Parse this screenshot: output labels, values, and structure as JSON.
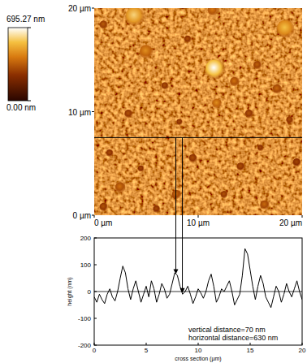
{
  "chart_data": [
    {
      "type": "image",
      "xlim": [
        0,
        20
      ],
      "ylim": [
        0,
        20
      ],
      "xticks": [
        {
          "value": 0,
          "label": "0 µm"
        },
        {
          "value": 10,
          "label": "10 µm"
        },
        {
          "value": 20,
          "label": "20 µm"
        }
      ],
      "yticks": [
        {
          "value": 0,
          "label": "0 µm"
        },
        {
          "value": 10,
          "label": "10 µm"
        },
        {
          "value": 20,
          "label": "20 µm"
        }
      ],
      "colorbar_range": [
        0,
        695.27
      ],
      "colorbar_ticks": [
        {
          "value": 0,
          "label": "0.00 nm"
        },
        {
          "value": 695.27,
          "label": "695.27 nm"
        }
      ],
      "cross_section_y": 7.5,
      "grains": [
        {
          "x": 3.9,
          "y": 19.2,
          "d": 1.8,
          "height": 600
        },
        {
          "x": 11.6,
          "y": 14.1,
          "d": 1.9,
          "height": 695
        },
        {
          "x": 18.4,
          "y": 18.0,
          "d": 1.7,
          "height": 560
        },
        {
          "x": 5.0,
          "y": 15.8,
          "d": 1.3,
          "height": 460
        },
        {
          "x": 11.4,
          "y": 19.8,
          "d": 1.0,
          "height": 420
        },
        {
          "x": 11.8,
          "y": 10.8,
          "d": 0.9,
          "height": 460
        },
        {
          "x": 13.5,
          "y": 12.9,
          "d": 0.9,
          "height": 400
        },
        {
          "x": 17.6,
          "y": 12.2,
          "d": 0.9,
          "height": 380
        },
        {
          "x": 15.7,
          "y": 14.5,
          "d": 0.8,
          "height": 360
        },
        {
          "x": 0.9,
          "y": 18.4,
          "d": 0.8,
          "height": 350
        },
        {
          "x": 2.5,
          "y": 2.7,
          "d": 1.0,
          "height": 400
        },
        {
          "x": 7.9,
          "y": 2.0,
          "d": 0.9,
          "height": 380
        },
        {
          "x": 16.4,
          "y": 1.0,
          "d": 0.9,
          "height": 380
        },
        {
          "x": 3.3,
          "y": 9.8,
          "d": 0.8,
          "height": 330
        },
        {
          "x": 14.9,
          "y": 9.8,
          "d": 0.8,
          "height": 330
        },
        {
          "x": 9.5,
          "y": 5.5,
          "d": 0.8,
          "height": 320
        },
        {
          "x": 14.1,
          "y": 4.7,
          "d": 0.8,
          "height": 320
        },
        {
          "x": 0.9,
          "y": 0.8,
          "d": 0.8,
          "height": 330
        },
        {
          "x": 19.5,
          "y": 5.1,
          "d": 0.8,
          "height": 300
        },
        {
          "x": 6.8,
          "y": 12.5,
          "d": 0.7,
          "height": 320
        },
        {
          "x": 9.0,
          "y": 17.0,
          "d": 0.7,
          "height": 320
        },
        {
          "x": 1.5,
          "y": 6.0,
          "d": 0.7,
          "height": 310
        },
        {
          "x": 6.0,
          "y": 0.6,
          "d": 0.7,
          "height": 310
        },
        {
          "x": 18.8,
          "y": 9.2,
          "d": 0.7,
          "height": 320
        },
        {
          "x": 12.5,
          "y": 2.0,
          "d": 0.7,
          "height": 330
        },
        {
          "x": 4.5,
          "y": 4.5,
          "d": 0.6,
          "height": 300
        },
        {
          "x": 16.0,
          "y": 6.5,
          "d": 0.6,
          "height": 300
        },
        {
          "x": 8.2,
          "y": 9.0,
          "d": 0.6,
          "height": 300
        }
      ]
    },
    {
      "type": "line",
      "x_label": "cross section (µm)",
      "y_label": "height (nm)",
      "color": "#000000",
      "xlim": [
        0,
        20
      ],
      "ylim": [
        -200,
        200
      ],
      "xticks": [
        0,
        5,
        10,
        15,
        20
      ],
      "yticks": [
        200,
        100,
        0,
        -100,
        -200
      ],
      "x": [
        0,
        0.25,
        0.5,
        0.75,
        1,
        1.25,
        1.5,
        1.75,
        2,
        2.25,
        2.5,
        2.75,
        3,
        3.25,
        3.5,
        3.75,
        4,
        4.25,
        4.5,
        4.75,
        5,
        5.25,
        5.5,
        5.75,
        6,
        6.25,
        6.5,
        6.75,
        7,
        7.25,
        7.5,
        7.75,
        8,
        8.25,
        8.5,
        8.75,
        9,
        9.25,
        9.5,
        9.75,
        10,
        10.25,
        10.5,
        10.75,
        11,
        11.25,
        11.5,
        11.75,
        12,
        12.25,
        12.5,
        12.75,
        13,
        13.25,
        13.5,
        13.75,
        14,
        14.25,
        14.5,
        14.75,
        15,
        15.25,
        15.5,
        15.75,
        16,
        16.25,
        16.5,
        16.75,
        17,
        17.25,
        17.5,
        17.75,
        18,
        18.25,
        18.5,
        18.75,
        19,
        19.25,
        19.5,
        19.75,
        20
      ],
      "values": [
        -20,
        -40,
        -10,
        -30,
        -45,
        -10,
        10,
        -20,
        -35,
        0,
        50,
        95,
        70,
        10,
        -30,
        10,
        40,
        0,
        -40,
        -10,
        20,
        -20,
        40,
        10,
        -40,
        -10,
        30,
        10,
        -25,
        -10,
        30,
        70,
        60,
        20,
        -10,
        0,
        20,
        -10,
        -45,
        -20,
        10,
        -5,
        -25,
        0,
        40,
        65,
        20,
        -40,
        -20,
        10,
        0,
        20,
        40,
        0,
        -50,
        -30,
        -10,
        60,
        160,
        140,
        80,
        20,
        -30,
        20,
        60,
        30,
        -20,
        -40,
        -60,
        -20,
        20,
        0,
        -40,
        -10,
        30,
        0,
        -20,
        10,
        40,
        0,
        -30
      ],
      "markers": {
        "x": [
          7.85,
          8.48
        ],
        "values": [
          65,
          -5
        ]
      },
      "annotations": [
        "vertical distance=70 nm",
        "horizontal distance=630 nm"
      ]
    }
  ]
}
